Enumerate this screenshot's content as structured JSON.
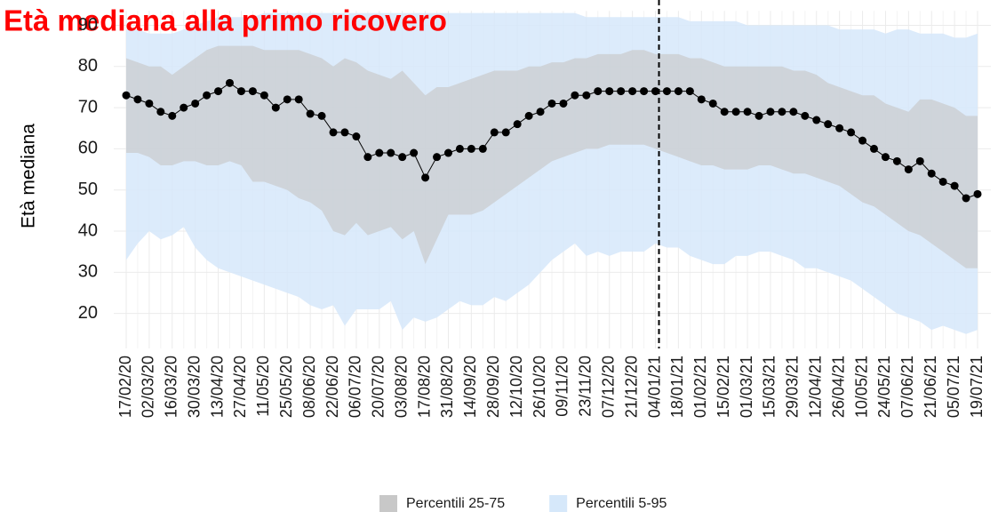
{
  "chart_data": {
    "type": "band-line",
    "title": "Età mediana alla primo ricovero",
    "y_label": "Età mediana",
    "categories": [
      "17/02/20",
      null,
      "02/03/20",
      null,
      "16/03/20",
      null,
      "30/03/20",
      null,
      "13/04/20",
      null,
      "27/04/20",
      null,
      "11/05/20",
      null,
      "25/05/20",
      null,
      "08/06/20",
      null,
      "22/06/20",
      null,
      "06/07/20",
      null,
      "20/07/20",
      null,
      "03/08/20",
      null,
      "17/08/20",
      null,
      "31/08/20",
      null,
      "14/09/20",
      null,
      "28/09/20",
      null,
      "12/10/20",
      null,
      "26/10/20",
      null,
      "09/11/20",
      null,
      "23/11/20",
      null,
      "07/12/20",
      null,
      "21/12/20",
      null,
      "04/01/21",
      null,
      "18/01/21",
      null,
      "01/02/21",
      null,
      "15/02/21",
      null,
      "01/03/21",
      null,
      "15/03/21",
      null,
      "29/03/21",
      null,
      "12/04/21",
      null,
      "26/04/21",
      null,
      "10/05/21",
      null,
      "24/05/21",
      null,
      "07/06/21",
      null,
      "21/06/21",
      null,
      "05/07/21",
      null,
      "19/07/21"
    ],
    "values": [
      73,
      72,
      71,
      69,
      68,
      70,
      71,
      73,
      74,
      76,
      74,
      74,
      73,
      70,
      72,
      72,
      68.5,
      68,
      64,
      64,
      63,
      58,
      59,
      59,
      58,
      59,
      53,
      58,
      59,
      60,
      60,
      60,
      64,
      64,
      66,
      68,
      69,
      71,
      71,
      73,
      73,
      74,
      74,
      74,
      74,
      74,
      74,
      74,
      74,
      74,
      72,
      71,
      69,
      69,
      69,
      68,
      69,
      69,
      69,
      68,
      67,
      66,
      65,
      64,
      62,
      60,
      58,
      57,
      55,
      57,
      54,
      52,
      51,
      48,
      49
    ],
    "color": "#000000",
    "series": [
      {
        "name": "Percentili 5-95",
        "color": "#d6e8fa",
        "upper": [
          89,
          89,
          88,
          88,
          88,
          89,
          90,
          91,
          92,
          92,
          92,
          92,
          93,
          93,
          93,
          93,
          93,
          93,
          93,
          93,
          93,
          93,
          93,
          93,
          93,
          93,
          93,
          93,
          93,
          93,
          93,
          93,
          93,
          93,
          93,
          93,
          93,
          93,
          93,
          93,
          92,
          92,
          92,
          92,
          92,
          92,
          92,
          92,
          92,
          91,
          91,
          91,
          91,
          91,
          90,
          90,
          90,
          90,
          90,
          90,
          90,
          90,
          89,
          89,
          89,
          89,
          88,
          89,
          89,
          88,
          88,
          88,
          87,
          87,
          88
        ],
        "lower": [
          33,
          37,
          40,
          38,
          39,
          41,
          36,
          33,
          31,
          30,
          29,
          28,
          27,
          26,
          25,
          24,
          22,
          21,
          22,
          17,
          21,
          21,
          21,
          23,
          16,
          19,
          18,
          19,
          21,
          23,
          22,
          22,
          24,
          23,
          25,
          27,
          30,
          33,
          35,
          37,
          34,
          35,
          34,
          35,
          35,
          35,
          37,
          36,
          36,
          34,
          33,
          32,
          32,
          34,
          34,
          35,
          35,
          34,
          33,
          31,
          31,
          30,
          29,
          28,
          26,
          24,
          22,
          20,
          19,
          18,
          16,
          17,
          16,
          15,
          16
        ]
      },
      {
        "name": "Percentili 25-75",
        "color": "#c8c8c8",
        "upper": [
          82,
          81,
          80,
          80,
          78,
          80,
          82,
          84,
          85,
          85,
          85,
          85,
          84,
          84,
          84,
          84,
          83,
          82,
          80,
          82,
          81,
          79,
          78,
          77,
          79,
          76,
          73,
          75,
          75,
          76,
          77,
          78,
          79,
          79,
          79,
          80,
          80,
          81,
          81,
          82,
          82,
          83,
          83,
          83,
          84,
          84,
          83,
          83,
          83,
          82,
          82,
          81,
          80,
          80,
          80,
          80,
          80,
          80,
          79,
          79,
          78,
          76,
          75,
          74,
          73,
          73,
          71,
          70,
          69,
          72,
          72,
          71,
          70,
          68,
          68
        ],
        "lower": [
          59,
          59,
          58,
          56,
          56,
          57,
          57,
          56,
          56,
          57,
          56,
          52,
          52,
          51,
          50,
          48,
          47,
          45,
          40,
          39,
          42,
          39,
          40,
          41,
          38,
          40,
          32,
          38,
          44,
          44,
          44,
          45,
          47,
          49,
          51,
          53,
          55,
          57,
          58,
          59,
          60,
          60,
          61,
          61,
          61,
          61,
          60,
          59,
          58,
          57,
          56,
          56,
          55,
          55,
          55,
          56,
          56,
          55,
          54,
          54,
          53,
          52,
          51,
          49,
          47,
          46,
          44,
          42,
          40,
          39,
          37,
          35,
          33,
          31,
          31
        ]
      }
    ],
    "vline": "04/01/21",
    "ylim": [
      11.5,
      93.5
    ],
    "yticks": [
      20,
      30,
      40,
      50,
      60,
      70,
      80,
      90
    ],
    "grid": true,
    "legend": "bottom"
  }
}
